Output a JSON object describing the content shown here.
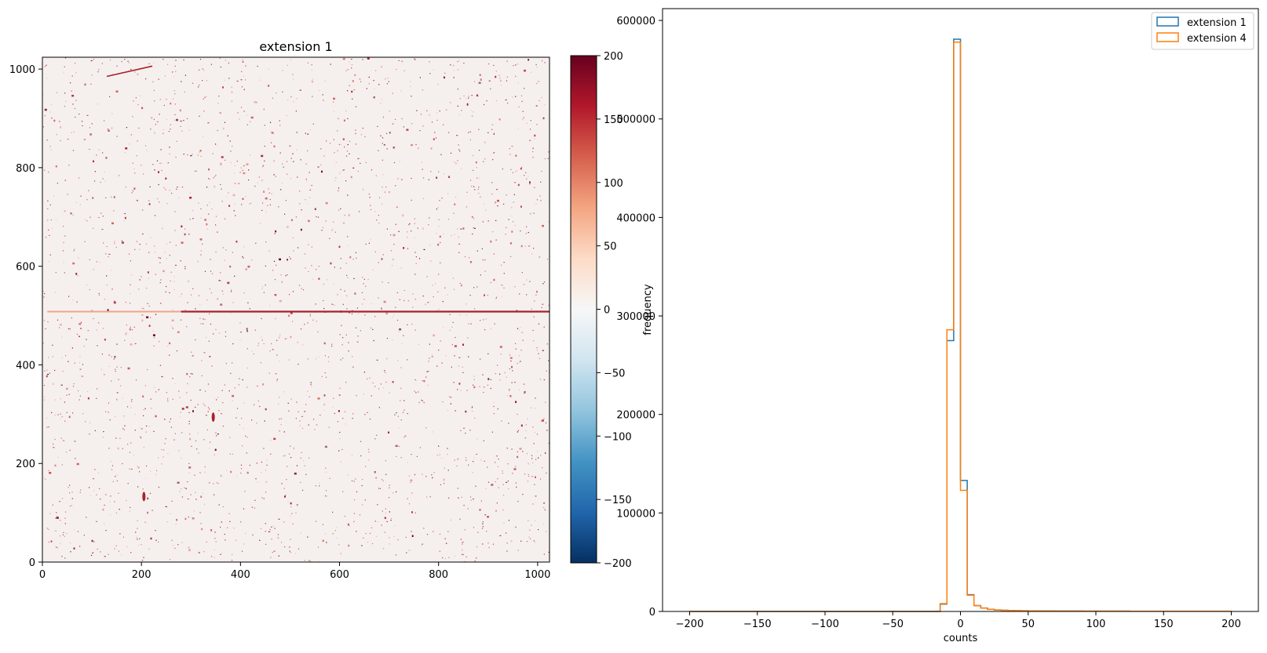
{
  "chart_data": [
    {
      "type": "heatmap",
      "title": "extension 1",
      "xlabel": "",
      "ylabel": "",
      "xlim": [
        0,
        1024
      ],
      "ylim": [
        0,
        1024
      ],
      "xticks": [
        0,
        200,
        400,
        600,
        800,
        1000
      ],
      "yticks": [
        0,
        200,
        400,
        600,
        800,
        1000
      ],
      "colormap": "RdBu_r",
      "background_value_color": "#f5f0ee",
      "colorbar": {
        "range": [
          -200,
          200
        ],
        "ticks": [
          200,
          150,
          100,
          50,
          0,
          -50,
          -100,
          -150,
          -200
        ],
        "tick_labels": [
          "200",
          "150",
          "100",
          "50",
          "0",
          "−50",
          "−100",
          "−150",
          "−200"
        ],
        "colors": [
          "#053061",
          "#2166ac",
          "#4393c3",
          "#92c5de",
          "#d1e5f0",
          "#f7f7f7",
          "#fddbc7",
          "#f4a582",
          "#d6604d",
          "#b2182b",
          "#67001f"
        ]
      },
      "features": [
        {
          "kind": "horizontal-streak",
          "y": 508,
          "x_start": 10,
          "x_end": 1024,
          "color": "#a8202c"
        },
        {
          "kind": "diagonal-streak",
          "x_start": 130,
          "y_start": 985,
          "x_end": 222,
          "y_end": 1006,
          "color": "#a8202c"
        },
        {
          "kind": "blob",
          "x": 205,
          "y": 133
        },
        {
          "kind": "blob",
          "x": 345,
          "y": 294
        }
      ]
    },
    {
      "type": "histogram",
      "title": "",
      "xlabel": "counts",
      "ylabel": "frequency",
      "xlim": [
        -220,
        220
      ],
      "ylim": [
        0,
        612000
      ],
      "xticks": [
        -200,
        -150,
        -100,
        -50,
        0,
        50,
        100,
        150,
        200
      ],
      "xtick_labels": [
        "−200",
        "−150",
        "−100",
        "−50",
        "0",
        "50",
        "100",
        "150",
        "200"
      ],
      "yticks": [
        0,
        100000,
        200000,
        300000,
        400000,
        500000,
        600000
      ],
      "ytick_labels": [
        "0",
        "100000",
        "200000",
        "300000",
        "400000",
        "500000",
        "600000"
      ],
      "legend_placement": "top-right",
      "bin_edges": [
        -200,
        -195,
        -190,
        -185,
        -180,
        -175,
        -170,
        -165,
        -160,
        -155,
        -150,
        -145,
        -140,
        -135,
        -130,
        -125,
        -120,
        -115,
        -110,
        -105,
        -100,
        -95,
        -90,
        -85,
        -80,
        -75,
        -70,
        -65,
        -60,
        -55,
        -50,
        -45,
        -40,
        -35,
        -30,
        -25,
        -20,
        -15,
        -10,
        -5,
        0,
        5,
        10,
        15,
        20,
        25,
        30,
        35,
        40,
        45,
        50,
        55,
        60,
        65,
        70,
        75,
        80,
        85,
        90,
        95,
        100,
        105,
        110,
        115,
        120,
        125,
        130,
        135,
        140,
        145,
        150,
        155,
        160,
        165,
        170,
        175,
        180,
        185,
        190,
        195,
        200
      ],
      "series": [
        {
          "name": "extension 1",
          "color": "#1f77b4",
          "values": [
            0,
            0,
            0,
            0,
            0,
            0,
            0,
            0,
            0,
            0,
            0,
            0,
            0,
            0,
            0,
            0,
            0,
            0,
            0,
            0,
            0,
            0,
            0,
            0,
            0,
            0,
            0,
            0,
            0,
            0,
            0,
            0,
            0,
            0,
            0,
            0,
            0,
            7500,
            275000,
            581000,
            133000,
            17000,
            6000,
            3500,
            2200,
            1500,
            1200,
            900,
            800,
            700,
            600,
            550,
            500,
            450,
            420,
            400,
            380,
            360,
            340,
            320,
            300,
            290,
            280,
            270,
            260,
            250,
            240,
            230,
            220,
            210,
            200,
            195,
            190,
            185,
            180,
            175,
            170,
            165,
            160,
            155
          ]
        },
        {
          "name": "extension 4",
          "color": "#ff7f0e",
          "values": [
            0,
            0,
            0,
            0,
            0,
            0,
            0,
            0,
            0,
            0,
            0,
            0,
            0,
            0,
            0,
            0,
            0,
            0,
            0,
            0,
            0,
            0,
            0,
            0,
            0,
            0,
            0,
            0,
            0,
            0,
            0,
            0,
            0,
            0,
            0,
            0,
            0,
            8000,
            286000,
            578000,
            123000,
            16500,
            5800,
            3400,
            2100,
            1450,
            1150,
            880,
            780,
            690,
            590,
            540,
            490,
            440,
            410,
            390,
            370,
            350,
            330,
            310,
            295,
            285,
            275,
            265,
            255,
            245,
            235,
            225,
            215,
            205,
            198,
            192,
            187,
            182,
            177,
            172,
            167,
            162,
            157,
            152
          ]
        }
      ]
    }
  ]
}
